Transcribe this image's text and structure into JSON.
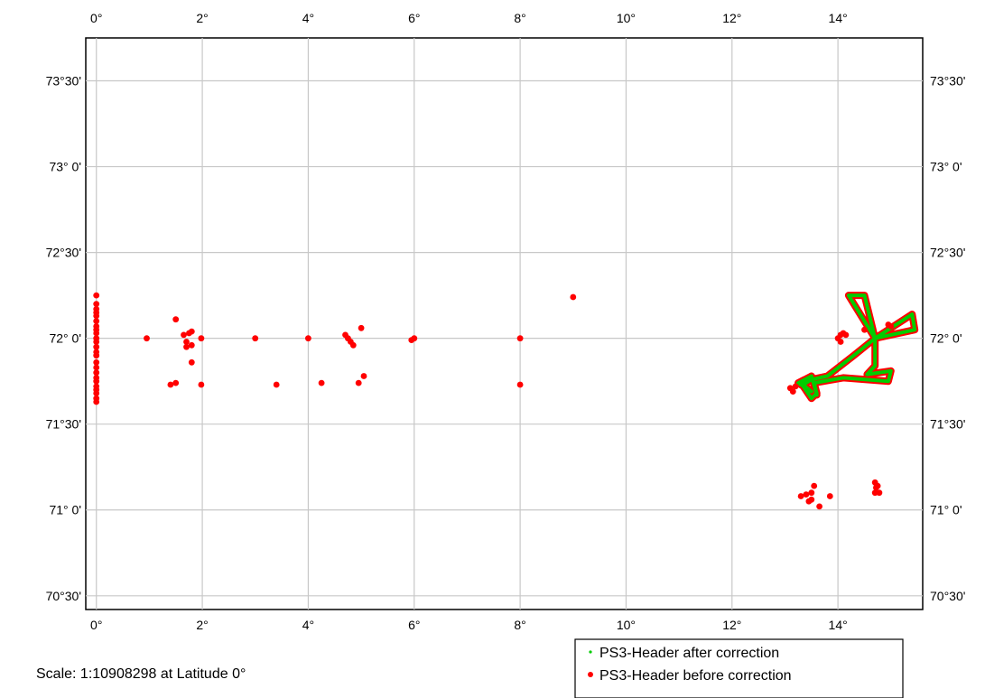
{
  "chart_data": {
    "type": "map",
    "grid": true,
    "xlim": [
      -0.2,
      15.6
    ],
    "ylim": [
      70.42,
      73.75
    ],
    "x_ticks": [
      {
        "v": 0,
        "label": "0°"
      },
      {
        "v": 2,
        "label": "2°"
      },
      {
        "v": 4,
        "label": "4°"
      },
      {
        "v": 6,
        "label": "6°"
      },
      {
        "v": 8,
        "label": "8°"
      },
      {
        "v": 10,
        "label": "10°"
      },
      {
        "v": 12,
        "label": "12°"
      },
      {
        "v": 14,
        "label": "14°"
      }
    ],
    "y_ticks": [
      {
        "v": 73.5,
        "label": "73°30'"
      },
      {
        "v": 73.0,
        "label": "73° 0'"
      },
      {
        "v": 72.5,
        "label": "72°30'"
      },
      {
        "v": 72.0,
        "label": "72° 0'"
      },
      {
        "v": 71.5,
        "label": "71°30'"
      },
      {
        "v": 71.0,
        "label": "71° 0'"
      },
      {
        "v": 70.5,
        "label": "70°30'"
      }
    ],
    "legend": {
      "position": "bottom-right",
      "entries": [
        {
          "label": "PS3-Header after correction",
          "color": "#00cc00",
          "marker": "dot-small"
        },
        {
          "label": "PS3-Header before correction",
          "color": "#ff0000",
          "marker": "dot"
        }
      ]
    },
    "series": [
      {
        "name": "PS3-Header before correction",
        "color": "#ff0000",
        "points": [
          [
            0,
            72.25
          ],
          [
            0,
            72.2
          ],
          [
            0,
            72.17
          ],
          [
            0,
            72.15
          ],
          [
            0,
            72.13
          ],
          [
            0,
            72.1
          ],
          [
            0,
            72.07
          ],
          [
            0,
            72.05
          ],
          [
            0,
            72.03
          ],
          [
            0,
            72.0
          ],
          [
            0,
            71.98
          ],
          [
            0,
            71.95
          ],
          [
            0,
            71.92
          ],
          [
            0,
            71.9
          ],
          [
            0,
            71.86
          ],
          [
            0,
            71.83
          ],
          [
            0,
            71.8
          ],
          [
            0,
            71.77
          ],
          [
            0,
            71.75
          ],
          [
            0,
            71.72
          ],
          [
            0,
            71.7
          ],
          [
            0,
            71.68
          ],
          [
            0,
            71.65
          ],
          [
            0,
            71.63
          ],
          [
            0.95,
            72.0
          ],
          [
            1.5,
            72.11
          ],
          [
            1.4,
            71.73
          ],
          [
            1.5,
            71.74
          ],
          [
            1.65,
            72.02
          ],
          [
            1.7,
            71.98
          ],
          [
            1.75,
            72.03
          ],
          [
            1.7,
            71.95
          ],
          [
            1.8,
            71.96
          ],
          [
            1.8,
            72.04
          ],
          [
            1.8,
            71.86
          ],
          [
            1.98,
            72.0
          ],
          [
            1.98,
            71.73
          ],
          [
            3.0,
            72.0
          ],
          [
            3.4,
            71.73
          ],
          [
            4.0,
            72.0
          ],
          [
            4.25,
            71.74
          ],
          [
            4.7,
            72.02
          ],
          [
            4.75,
            72.0
          ],
          [
            4.8,
            71.98
          ],
          [
            4.85,
            71.96
          ],
          [
            4.95,
            71.74
          ],
          [
            5.0,
            72.06
          ],
          [
            5.05,
            71.78
          ],
          [
            5.95,
            71.99
          ],
          [
            6.0,
            72.0
          ],
          [
            8.0,
            72.0
          ],
          [
            8.0,
            71.73
          ],
          [
            9.0,
            72.24
          ],
          [
            13.1,
            71.71
          ],
          [
            13.15,
            71.69
          ],
          [
            13.2,
            71.72
          ],
          [
            14.0,
            72.0
          ],
          [
            14.05,
            72.02
          ],
          [
            14.1,
            72.03
          ],
          [
            14.05,
            71.98
          ],
          [
            14.15,
            72.02
          ],
          [
            14.5,
            72.05
          ],
          [
            14.95,
            72.08
          ],
          [
            15.0,
            72.07
          ],
          [
            13.3,
            71.08
          ],
          [
            13.45,
            71.05
          ],
          [
            13.4,
            71.09
          ],
          [
            13.5,
            71.1
          ],
          [
            13.55,
            71.14
          ],
          [
            13.5,
            71.06
          ],
          [
            13.65,
            71.02
          ],
          [
            13.85,
            71.08
          ],
          [
            14.7,
            71.16
          ],
          [
            14.75,
            71.14
          ],
          [
            14.7,
            71.1
          ],
          [
            14.78,
            71.1
          ],
          [
            14.72,
            71.13
          ]
        ]
      },
      {
        "name": "PS3-Header after correction",
        "color": "#00cc00",
        "track": [
          [
            13.3,
            71.74
          ],
          [
            13.5,
            71.69
          ],
          [
            13.25,
            71.74
          ],
          [
            13.5,
            71.78
          ],
          [
            13.6,
            71.67
          ],
          [
            13.5,
            71.78
          ],
          [
            13.35,
            71.73
          ],
          [
            13.5,
            71.76
          ],
          [
            13.8,
            71.78
          ],
          [
            14.3,
            71.9
          ],
          [
            14.7,
            72.0
          ],
          [
            14.2,
            72.25
          ],
          [
            14.5,
            72.25
          ],
          [
            14.7,
            72.0
          ],
          [
            15.4,
            72.14
          ],
          [
            15.45,
            72.05
          ],
          [
            14.7,
            72.0
          ],
          [
            14.7,
            71.84
          ],
          [
            14.7,
            71.84
          ],
          [
            14.55,
            71.79
          ],
          [
            15.0,
            71.81
          ],
          [
            14.95,
            71.75
          ],
          [
            14.1,
            71.77
          ],
          [
            13.55,
            71.74
          ],
          [
            13.6,
            71.68
          ],
          [
            13.5,
            71.65
          ],
          [
            13.3,
            71.74
          ]
        ]
      }
    ]
  },
  "scale_text": "Scale:  1:10908298 at Latitude 0°"
}
